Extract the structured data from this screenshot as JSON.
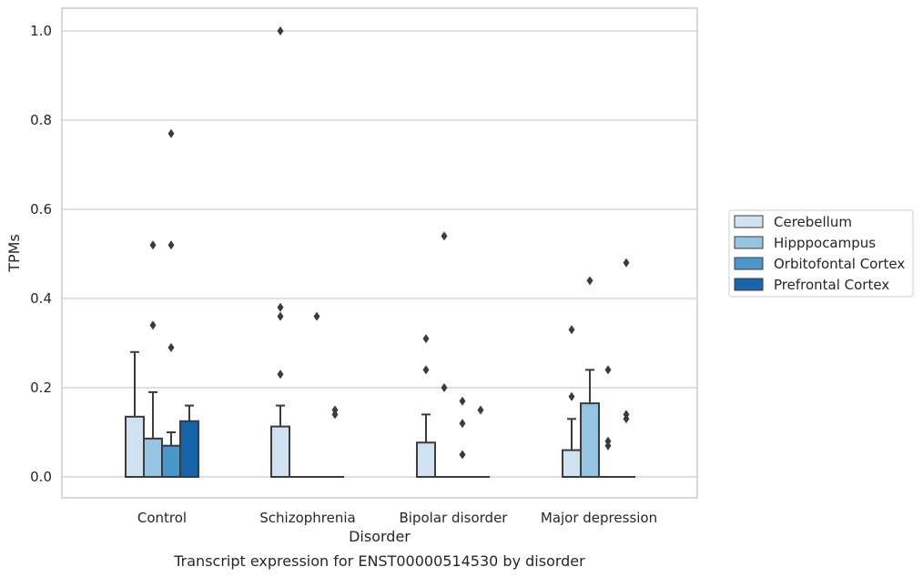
{
  "chart_data": {
    "type": "box",
    "title": "Transcript expression for ENST00000514530 by disorder",
    "xlabel": "Disorder",
    "ylabel": "TPMs",
    "ylim": [
      -0.048,
      1.05
    ],
    "yticks": [
      "0.0",
      "0.2",
      "0.4",
      "0.6",
      "0.8",
      "1.0"
    ],
    "grid": "horizontal",
    "legend_position": "right",
    "categories": [
      "Control",
      "Schizophrenia",
      "Bipolar disorder",
      "Major depression"
    ],
    "series": [
      {
        "name": "Cerebellum",
        "color": "#d0e1f2",
        "boxes": [
          {
            "q1": 0.0,
            "median": 0.0,
            "q3": 0.135,
            "whisker_low": 0.0,
            "whisker_high": 0.28,
            "outliers": []
          },
          {
            "q1": 0.0,
            "median": 0.0,
            "q3": 0.113,
            "whisker_low": 0.0,
            "whisker_high": 0.16,
            "outliers": [
              0.23,
              0.36,
              0.38,
              1.0
            ]
          },
          {
            "q1": 0.0,
            "median": 0.0,
            "q3": 0.077,
            "whisker_low": 0.0,
            "whisker_high": 0.14,
            "outliers": [
              0.24,
              0.31
            ]
          },
          {
            "q1": 0.0,
            "median": 0.0,
            "q3": 0.06,
            "whisker_low": 0.0,
            "whisker_high": 0.13,
            "outliers": [
              0.18,
              0.33
            ]
          }
        ]
      },
      {
        "name": "Hipppocampus",
        "color": "#94c4df",
        "boxes": [
          {
            "q1": 0.0,
            "median": 0.0,
            "q3": 0.086,
            "whisker_low": 0.0,
            "whisker_high": 0.19,
            "outliers": [
              0.34,
              0.52
            ]
          },
          {
            "q1": 0.0,
            "median": 0.0,
            "q3": 0.0,
            "whisker_low": 0.0,
            "whisker_high": 0.0,
            "outliers": []
          },
          {
            "q1": 0.0,
            "median": 0.0,
            "q3": 0.0,
            "whisker_low": 0.0,
            "whisker_high": 0.0,
            "outliers": [
              0.2,
              0.54
            ]
          },
          {
            "q1": 0.0,
            "median": 0.0,
            "q3": 0.165,
            "whisker_low": 0.0,
            "whisker_high": 0.24,
            "outliers": [
              0.44
            ]
          }
        ]
      },
      {
        "name": "Orbitofontal Cortex",
        "color": "#4a98c9",
        "boxes": [
          {
            "q1": 0.0,
            "median": 0.0,
            "q3": 0.07,
            "whisker_low": 0.0,
            "whisker_high": 0.1,
            "outliers": [
              0.29,
              0.52,
              0.77
            ]
          },
          {
            "q1": 0.0,
            "median": 0.0,
            "q3": 0.0,
            "whisker_low": 0.0,
            "whisker_high": 0.0,
            "outliers": [
              0.36
            ]
          },
          {
            "q1": 0.0,
            "median": 0.0,
            "q3": 0.0,
            "whisker_low": 0.0,
            "whisker_high": 0.0,
            "outliers": [
              0.05,
              0.12,
              0.17
            ]
          },
          {
            "q1": 0.0,
            "median": 0.0,
            "q3": 0.0,
            "whisker_low": 0.0,
            "whisker_high": 0.0,
            "outliers": [
              0.07,
              0.08,
              0.24
            ]
          }
        ]
      },
      {
        "name": "Prefrontal Cortex",
        "color": "#1764ab",
        "boxes": [
          {
            "q1": 0.0,
            "median": 0.0,
            "q3": 0.125,
            "whisker_low": 0.0,
            "whisker_high": 0.16,
            "outliers": []
          },
          {
            "q1": 0.0,
            "median": 0.0,
            "q3": 0.0,
            "whisker_low": 0.0,
            "whisker_high": 0.0,
            "outliers": [
              0.14,
              0.15
            ]
          },
          {
            "q1": 0.0,
            "median": 0.0,
            "q3": 0.0,
            "whisker_low": 0.0,
            "whisker_high": 0.0,
            "outliers": [
              0.15
            ]
          },
          {
            "q1": 0.0,
            "median": 0.0,
            "q3": 0.0,
            "whisker_low": 0.0,
            "whisker_high": 0.0,
            "outliers": [
              0.13,
              0.14,
              0.48
            ]
          }
        ]
      }
    ]
  }
}
